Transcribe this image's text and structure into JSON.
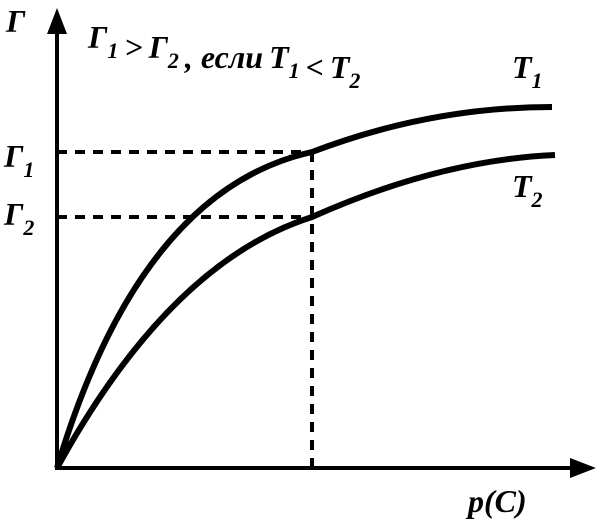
{
  "axes": {
    "y_label": "Γ",
    "x_label": "p(C)"
  },
  "condition": [
    {
      "base": "Γ",
      "sub": "1"
    },
    ">",
    {
      "base": "Γ",
      "sub": "2"
    },
    ", если",
    {
      "base": "T",
      "sub": "1"
    },
    "<",
    {
      "base": "T",
      "sub": "2"
    }
  ],
  "curves": [
    {
      "name": {
        "base": "T",
        "sub": "1"
      }
    },
    {
      "name": {
        "base": "T",
        "sub": "2"
      }
    }
  ],
  "levels": [
    {
      "base": "Γ",
      "sub": "1"
    },
    {
      "base": "Γ",
      "sub": "2"
    }
  ]
}
